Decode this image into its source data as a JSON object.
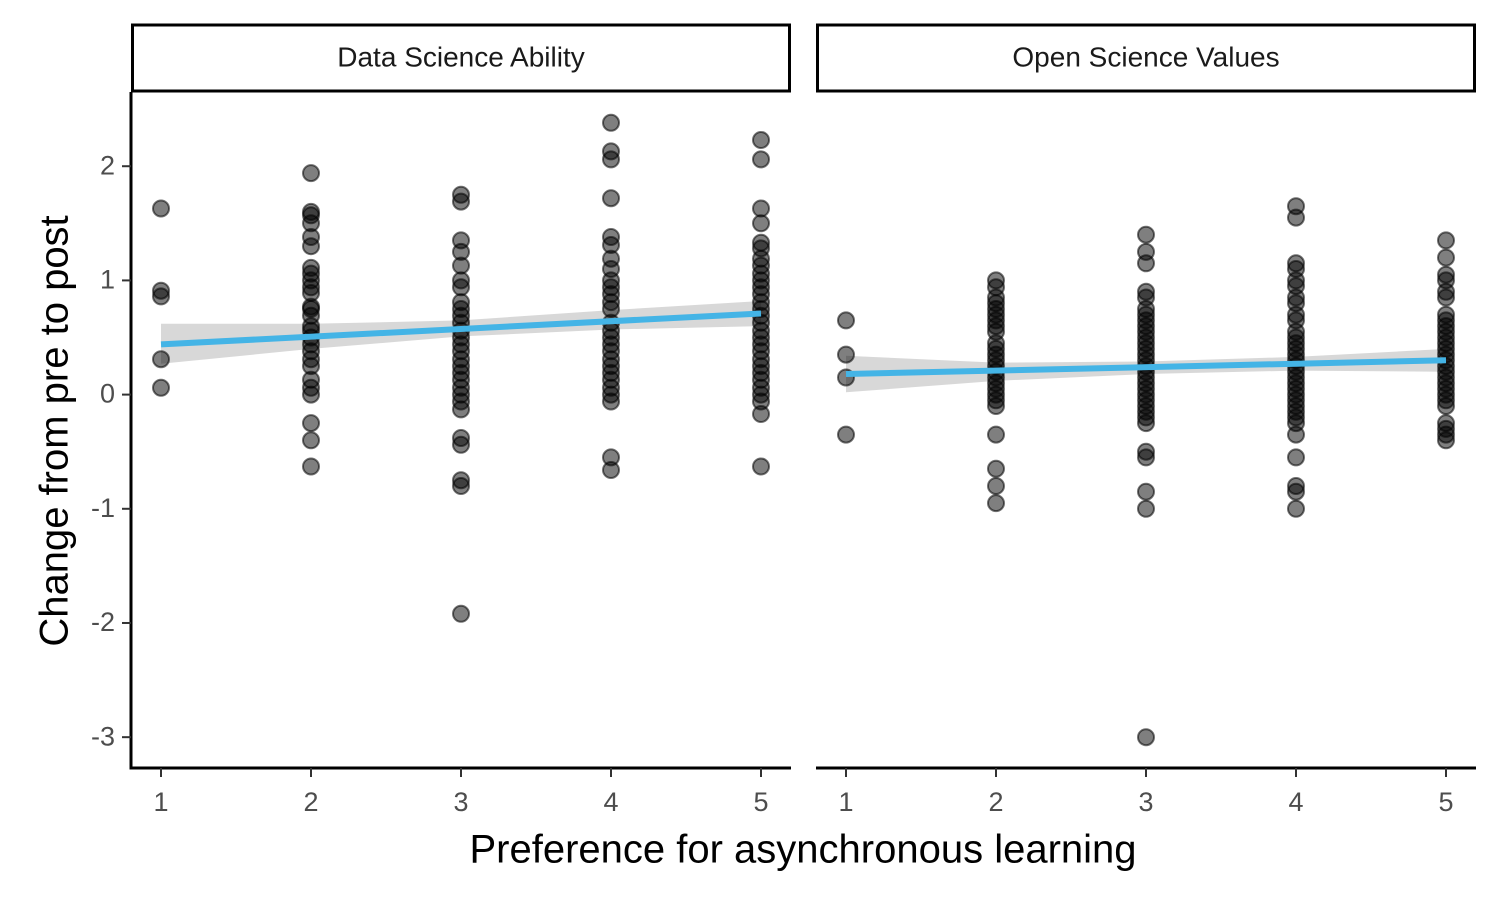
{
  "chart_data": {
    "type": "scatter",
    "xlabel": "Preference for asynchronous learning",
    "ylabel": "Change from pre to post",
    "x_ticks": [
      1,
      2,
      3,
      4,
      5
    ],
    "y_ticks": [
      2,
      1,
      0,
      -1,
      -2,
      -3
    ],
    "xlim": [
      0.8,
      5.2
    ],
    "ylim": [
      -3.27,
      2.65
    ],
    "grid": false,
    "colors": {
      "points": "#000000",
      "fit_line": "#44b4e6",
      "ci_band": "#bebebe"
    },
    "panels": [
      {
        "strip_label": "Data Science Ability",
        "points": [
          [
            1,
            1.63
          ],
          [
            1,
            0.91
          ],
          [
            1,
            0.86
          ],
          [
            1,
            0.31
          ],
          [
            1,
            0.06
          ],
          [
            2,
            1.94
          ],
          [
            2,
            1.6
          ],
          [
            2,
            1.57
          ],
          [
            2,
            1.5
          ],
          [
            2,
            1.38
          ],
          [
            2,
            1.3
          ],
          [
            2,
            1.11
          ],
          [
            2,
            1.06
          ],
          [
            2,
            1.0
          ],
          [
            2,
            0.94
          ],
          [
            2,
            0.89
          ],
          [
            2,
            0.77
          ],
          [
            2,
            0.75
          ],
          [
            2,
            0.69
          ],
          [
            2,
            0.6
          ],
          [
            2,
            0.56
          ],
          [
            2,
            0.5
          ],
          [
            2,
            0.44
          ],
          [
            2,
            0.38
          ],
          [
            2,
            0.31
          ],
          [
            2,
            0.25
          ],
          [
            2,
            0.13
          ],
          [
            2,
            0.06
          ],
          [
            2,
            0.0
          ],
          [
            2,
            -0.25
          ],
          [
            2,
            -0.4
          ],
          [
            2,
            -0.63
          ],
          [
            3,
            1.75
          ],
          [
            3,
            1.69
          ],
          [
            3,
            1.35
          ],
          [
            3,
            1.25
          ],
          [
            3,
            1.13
          ],
          [
            3,
            1.0
          ],
          [
            3,
            0.94
          ],
          [
            3,
            0.81
          ],
          [
            3,
            0.75
          ],
          [
            3,
            0.69
          ],
          [
            3,
            0.63
          ],
          [
            3,
            0.56
          ],
          [
            3,
            0.5
          ],
          [
            3,
            0.44
          ],
          [
            3,
            0.38
          ],
          [
            3,
            0.31
          ],
          [
            3,
            0.25
          ],
          [
            3,
            0.19
          ],
          [
            3,
            0.13
          ],
          [
            3,
            0.06
          ],
          [
            3,
            0.0
          ],
          [
            3,
            -0.06
          ],
          [
            3,
            -0.13
          ],
          [
            3,
            -0.38
          ],
          [
            3,
            -0.44
          ],
          [
            3,
            -0.75
          ],
          [
            3,
            -0.8
          ],
          [
            3,
            -1.92
          ],
          [
            4,
            2.38
          ],
          [
            4,
            2.13
          ],
          [
            4,
            2.06
          ],
          [
            4,
            1.72
          ],
          [
            4,
            1.38
          ],
          [
            4,
            1.31
          ],
          [
            4,
            1.19
          ],
          [
            4,
            1.1
          ],
          [
            4,
            1.0
          ],
          [
            4,
            0.94
          ],
          [
            4,
            0.88
          ],
          [
            4,
            0.81
          ],
          [
            4,
            0.75
          ],
          [
            4,
            0.63
          ],
          [
            4,
            0.56
          ],
          [
            4,
            0.5
          ],
          [
            4,
            0.44
          ],
          [
            4,
            0.38
          ],
          [
            4,
            0.31
          ],
          [
            4,
            0.25
          ],
          [
            4,
            0.19
          ],
          [
            4,
            0.13
          ],
          [
            4,
            0.06
          ],
          [
            4,
            0.0
          ],
          [
            4,
            -0.06
          ],
          [
            4,
            -0.55
          ],
          [
            4,
            -0.66
          ],
          [
            5,
            2.23
          ],
          [
            5,
            2.06
          ],
          [
            5,
            1.63
          ],
          [
            5,
            1.5
          ],
          [
            5,
            1.33
          ],
          [
            5,
            1.28
          ],
          [
            5,
            1.19
          ],
          [
            5,
            1.13
          ],
          [
            5,
            1.06
          ],
          [
            5,
            1.0
          ],
          [
            5,
            0.94
          ],
          [
            5,
            0.88
          ],
          [
            5,
            0.81
          ],
          [
            5,
            0.75
          ],
          [
            5,
            0.69
          ],
          [
            5,
            0.63
          ],
          [
            5,
            0.56
          ],
          [
            5,
            0.5
          ],
          [
            5,
            0.44
          ],
          [
            5,
            0.38
          ],
          [
            5,
            0.31
          ],
          [
            5,
            0.25
          ],
          [
            5,
            0.19
          ],
          [
            5,
            0.13
          ],
          [
            5,
            0.06
          ],
          [
            5,
            0.0
          ],
          [
            5,
            -0.06
          ],
          [
            5,
            -0.17
          ],
          [
            5,
            -0.63
          ]
        ],
        "fit": {
          "x": [
            1,
            5
          ],
          "y": [
            0.44,
            0.71
          ]
        },
        "ci_band": {
          "x": [
            1,
            2,
            3,
            4,
            5
          ],
          "lower": [
            0.27,
            0.4,
            0.51,
            0.57,
            0.6
          ],
          "upper": [
            0.62,
            0.62,
            0.65,
            0.74,
            0.82
          ]
        }
      },
      {
        "strip_label": "Open Science Values",
        "points": [
          [
            1,
            0.65
          ],
          [
            1,
            0.35
          ],
          [
            1,
            0.15
          ],
          [
            1,
            -0.35
          ],
          [
            2,
            1.0
          ],
          [
            2,
            0.94
          ],
          [
            2,
            0.85
          ],
          [
            2,
            0.8
          ],
          [
            2,
            0.75
          ],
          [
            2,
            0.7
          ],
          [
            2,
            0.65
          ],
          [
            2,
            0.6
          ],
          [
            2,
            0.55
          ],
          [
            2,
            0.45
          ],
          [
            2,
            0.4
          ],
          [
            2,
            0.35
          ],
          [
            2,
            0.3
          ],
          [
            2,
            0.25
          ],
          [
            2,
            0.2
          ],
          [
            2,
            0.15
          ],
          [
            2,
            0.1
          ],
          [
            2,
            0.05
          ],
          [
            2,
            0.0
          ],
          [
            2,
            -0.05
          ],
          [
            2,
            -0.1
          ],
          [
            2,
            -0.35
          ],
          [
            2,
            -0.65
          ],
          [
            2,
            -0.8
          ],
          [
            2,
            -0.95
          ],
          [
            3,
            1.4
          ],
          [
            3,
            1.25
          ],
          [
            3,
            1.15
          ],
          [
            3,
            0.9
          ],
          [
            3,
            0.85
          ],
          [
            3,
            0.75
          ],
          [
            3,
            0.7
          ],
          [
            3,
            0.65
          ],
          [
            3,
            0.6
          ],
          [
            3,
            0.55
          ],
          [
            3,
            0.5
          ],
          [
            3,
            0.45
          ],
          [
            3,
            0.4
          ],
          [
            3,
            0.35
          ],
          [
            3,
            0.3
          ],
          [
            3,
            0.25
          ],
          [
            3,
            0.2
          ],
          [
            3,
            0.15
          ],
          [
            3,
            0.1
          ],
          [
            3,
            0.05
          ],
          [
            3,
            0.0
          ],
          [
            3,
            -0.05
          ],
          [
            3,
            -0.1
          ],
          [
            3,
            -0.15
          ],
          [
            3,
            -0.2
          ],
          [
            3,
            -0.25
          ],
          [
            3,
            -0.5
          ],
          [
            3,
            -0.55
          ],
          [
            3,
            -0.85
          ],
          [
            3,
            -1.0
          ],
          [
            3,
            -3.0
          ],
          [
            4,
            1.65
          ],
          [
            4,
            1.55
          ],
          [
            4,
            1.15
          ],
          [
            4,
            1.1
          ],
          [
            4,
            1.0
          ],
          [
            4,
            0.95
          ],
          [
            4,
            0.85
          ],
          [
            4,
            0.8
          ],
          [
            4,
            0.7
          ],
          [
            4,
            0.65
          ],
          [
            4,
            0.55
          ],
          [
            4,
            0.5
          ],
          [
            4,
            0.45
          ],
          [
            4,
            0.4
          ],
          [
            4,
            0.35
          ],
          [
            4,
            0.3
          ],
          [
            4,
            0.25
          ],
          [
            4,
            0.2
          ],
          [
            4,
            0.15
          ],
          [
            4,
            0.1
          ],
          [
            4,
            0.05
          ],
          [
            4,
            0.0
          ],
          [
            4,
            -0.05
          ],
          [
            4,
            -0.1
          ],
          [
            4,
            -0.15
          ],
          [
            4,
            -0.2
          ],
          [
            4,
            -0.25
          ],
          [
            4,
            -0.35
          ],
          [
            4,
            -0.55
          ],
          [
            4,
            -0.8
          ],
          [
            4,
            -0.85
          ],
          [
            4,
            -1.0
          ],
          [
            5,
            1.35
          ],
          [
            5,
            1.2
          ],
          [
            5,
            1.05
          ],
          [
            5,
            1.0
          ],
          [
            5,
            0.9
          ],
          [
            5,
            0.85
          ],
          [
            5,
            0.7
          ],
          [
            5,
            0.65
          ],
          [
            5,
            0.6
          ],
          [
            5,
            0.55
          ],
          [
            5,
            0.5
          ],
          [
            5,
            0.45
          ],
          [
            5,
            0.4
          ],
          [
            5,
            0.35
          ],
          [
            5,
            0.3
          ],
          [
            5,
            0.25
          ],
          [
            5,
            0.2
          ],
          [
            5,
            0.15
          ],
          [
            5,
            0.1
          ],
          [
            5,
            0.05
          ],
          [
            5,
            0.0
          ],
          [
            5,
            -0.05
          ],
          [
            5,
            -0.1
          ],
          [
            5,
            -0.25
          ],
          [
            5,
            -0.3
          ],
          [
            5,
            -0.35
          ],
          [
            5,
            -0.4
          ]
        ],
        "fit": {
          "x": [
            1,
            5
          ],
          "y": [
            0.18,
            0.3
          ]
        },
        "ci_band": {
          "x": [
            1,
            2,
            3,
            4,
            5
          ],
          "lower": [
            0.02,
            0.12,
            0.18,
            0.21,
            0.2
          ],
          "upper": [
            0.34,
            0.28,
            0.29,
            0.33,
            0.4
          ]
        }
      }
    ]
  }
}
